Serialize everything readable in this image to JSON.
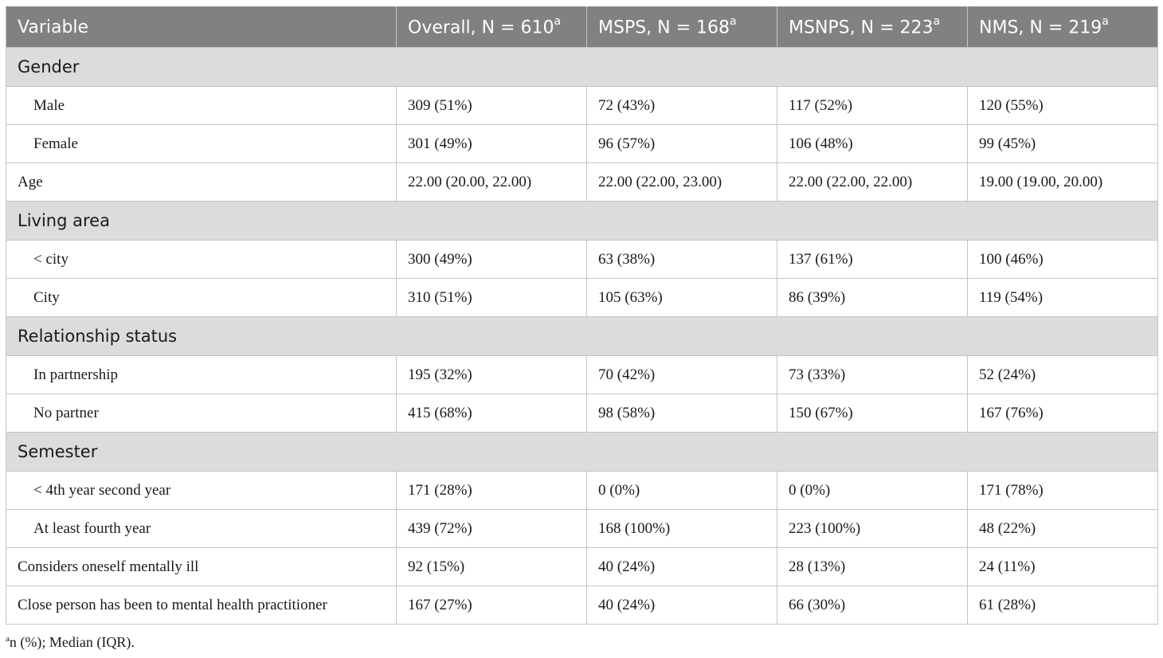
{
  "table": {
    "headers": [
      {
        "text": "Variable",
        "sup": ""
      },
      {
        "text": "Overall, N = 610",
        "sup": "a"
      },
      {
        "text": "MSPS, N = 168",
        "sup": "a"
      },
      {
        "text": "MSNPS, N = 223",
        "sup": "a"
      },
      {
        "text": "NMS, N = 219",
        "sup": "a"
      }
    ],
    "rows": [
      {
        "type": "section",
        "label": "Gender"
      },
      {
        "type": "sub",
        "label": "Male",
        "values": [
          "309 (51%)",
          "72 (43%)",
          "117 (52%)",
          "120 (55%)"
        ]
      },
      {
        "type": "sub",
        "label": "Female",
        "values": [
          "301 (49%)",
          "96 (57%)",
          "106 (48%)",
          "99 (45%)"
        ]
      },
      {
        "type": "top",
        "label": "Age",
        "values": [
          "22.00 (20.00, 22.00)",
          "22.00 (22.00, 23.00)",
          "22.00 (22.00, 22.00)",
          "19.00 (19.00, 20.00)"
        ]
      },
      {
        "type": "section",
        "label": "Living area"
      },
      {
        "type": "sub",
        "label": "< city",
        "values": [
          "300 (49%)",
          "63 (38%)",
          "137 (61%)",
          "100 (46%)"
        ]
      },
      {
        "type": "sub",
        "label": "City",
        "values": [
          "310 (51%)",
          "105 (63%)",
          "86 (39%)",
          "119 (54%)"
        ]
      },
      {
        "type": "section",
        "label": "Relationship status"
      },
      {
        "type": "sub",
        "label": "In partnership",
        "values": [
          "195 (32%)",
          "70 (42%)",
          "73 (33%)",
          "52 (24%)"
        ]
      },
      {
        "type": "sub",
        "label": "No partner",
        "values": [
          "415 (68%)",
          "98 (58%)",
          "150 (67%)",
          "167 (76%)"
        ]
      },
      {
        "type": "section",
        "label": "Semester"
      },
      {
        "type": "sub",
        "label": "< 4th year second year",
        "values": [
          "171 (28%)",
          "0 (0%)",
          "0 (0%)",
          "171 (78%)"
        ]
      },
      {
        "type": "sub",
        "label": "At least fourth year",
        "values": [
          "439 (72%)",
          "168 (100%)",
          "223 (100%)",
          "48 (22%)"
        ]
      },
      {
        "type": "top",
        "label": "Considers oneself mentally ill",
        "values": [
          "92 (15%)",
          "40 (24%)",
          "28 (13%)",
          "24 (11%)"
        ]
      },
      {
        "type": "top",
        "label": "Close person has been to mental health practitioner",
        "values": [
          "167 (27%)",
          "40 (24%)",
          "66 (30%)",
          "61 (28%)"
        ]
      }
    ]
  },
  "footnote": {
    "sup": "a",
    "text": "n (%); Median (IQR)."
  }
}
